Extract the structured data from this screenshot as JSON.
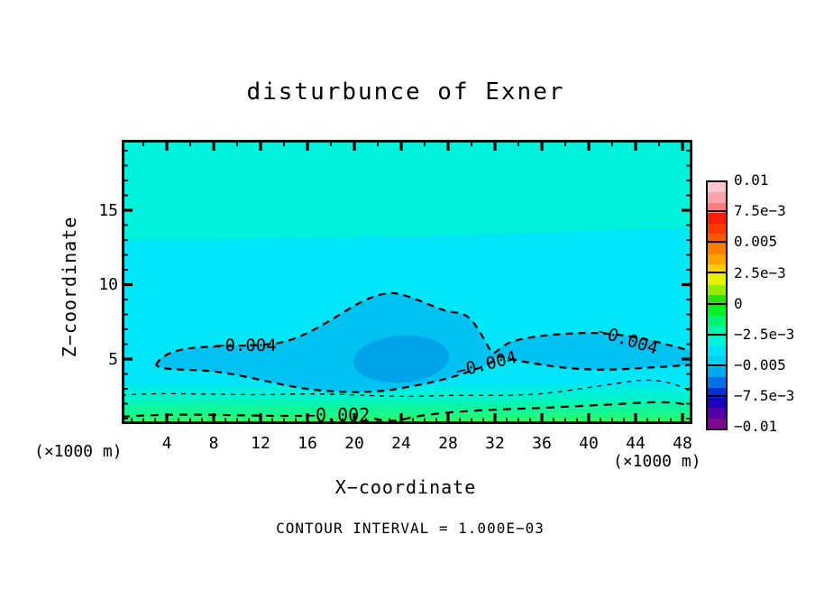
{
  "title": "disturbunce of Exner",
  "footnote": "CONTOUR INTERVAL = 1.000E−03",
  "x_axis": {
    "label": "X−coordinate",
    "unit_left": "(×1000 m)",
    "unit_right": "(×1000 m)",
    "ticks": [
      "4",
      "8",
      "12",
      "16",
      "20",
      "24",
      "28",
      "32",
      "36",
      "40",
      "44",
      "48"
    ]
  },
  "z_axis": {
    "label": "Z−coordinate",
    "ticks": [
      "5",
      "10",
      "15"
    ]
  },
  "contour_labels": {
    "left_m004": "−0.004",
    "mid_m004": "−0.004",
    "right_m004": "−0.004",
    "m002": "−0.002"
  },
  "colorbar": {
    "labels": [
      "0.01",
      "7.5e−3",
      "0.005",
      "2.5e−3",
      "0",
      "−2.5e−3",
      "−0.005",
      "−7.5e−3",
      "−0.01"
    ],
    "colors": [
      "#FFC6D2",
      "#FFA2AE",
      "#FF7A82",
      "#FF1E0A",
      "#FF3C00",
      "#FF5A00",
      "#FF7D00",
      "#FFA300",
      "#FFCD00",
      "#E8F000",
      "#96EC00",
      "#2ADF0A",
      "#00F028",
      "#00F472",
      "#00F6AC",
      "#00F2DC",
      "#00E2F4",
      "#00CCF4",
      "#00A8EE",
      "#0072E4",
      "#0030D6",
      "#1C00BE",
      "#5000A4",
      "#7C0890"
    ]
  },
  "plot_colors": {
    "top_band": "#00F1DC",
    "main_field": "#00E5F8",
    "band_m004": "#00C2F2",
    "inner_blob": "#00A2E8",
    "bottom_stripes": [
      "#00EEE2",
      "#00F1CE",
      "#06F4B4",
      "#12F69A",
      "#1FF87E",
      "#2DFA62"
    ],
    "contour_line": "#000000"
  },
  "chart_data": {
    "type": "heatmap",
    "subtype": "filled_contour_with_dashed_isolines",
    "title": "disturbunce of Exner",
    "xlabel": "X-coordinate (×1000 m)",
    "ylabel": "Z-coordinate (×1000 m)",
    "xlim": [
      0.2,
      48.8
    ],
    "ylim": [
      0.6,
      19.7
    ],
    "x_major_ticks": [
      4,
      8,
      12,
      16,
      20,
      24,
      28,
      32,
      36,
      40,
      44,
      48
    ],
    "z_major_ticks": [
      5,
      10,
      15
    ],
    "contour_interval": 0.001,
    "colorbar_range": [
      -0.01,
      0.01
    ],
    "colorbar_tick_values": [
      0.01,
      0.0075,
      0.005,
      0.0025,
      0,
      -0.0025,
      -0.005,
      -0.0075,
      -0.01
    ],
    "labeled_isolines": [
      -0.004,
      -0.002
    ],
    "unlabeled_isolines": [
      -0.003
    ],
    "features": [
      {
        "level": -0.004,
        "shape": "dashed closed contour from x≈3 to the right edge, spanning z≈2.5–9.5, domed peak near x≈23, z≈9.3, V-notch near x≈32"
      },
      {
        "level": -0.005,
        "shape": "oval minimum pocket centered near x≈24, z≈4.3"
      },
      {
        "level": -0.003,
        "shape": "thin dashed quasi-horizontal line near z≈2"
      },
      {
        "level": -0.002,
        "shape": "dashed quasi-horizontal line near z≈1"
      },
      {
        "level": -0.0035,
        "shape": "fill-shade boundary near z≈13.5; field slightly less negative above"
      }
    ],
    "field_summary": "Perturbation Exner function is negative everywhere shown: ≈-0.001 near the surface, decreasing to ≈-0.005 in a mid-level pocket around x=24, z=4.5, and ≈-0.003 aloft"
  }
}
